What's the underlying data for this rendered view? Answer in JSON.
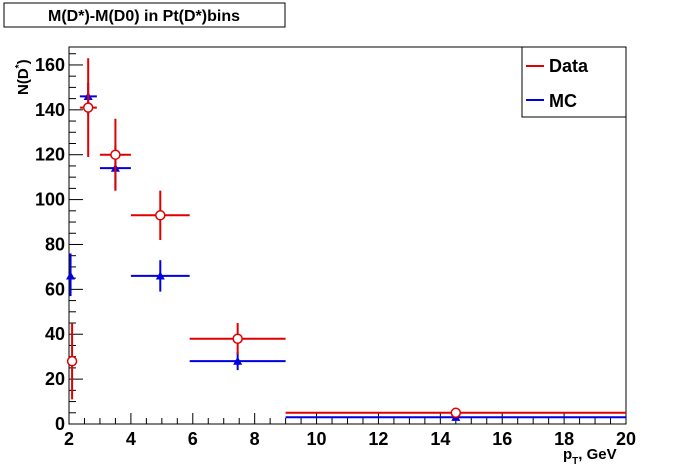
{
  "chart_data": {
    "type": "scatter",
    "title": "M(D*)-M(D0) in Pt(D*)bins",
    "xlabel_main": "p",
    "xlabel_sub": "T",
    "xlabel_rest": ", GeV",
    "ylabel_main": "N(D",
    "ylabel_sup": "*",
    "ylabel_close": ")",
    "xlim": [
      2,
      20
    ],
    "ylim": [
      0,
      168
    ],
    "x_ticks": [
      2,
      4,
      6,
      8,
      10,
      12,
      14,
      16,
      18,
      20
    ],
    "y_ticks": [
      0,
      20,
      40,
      60,
      80,
      100,
      120,
      140,
      160
    ],
    "grid": false,
    "legend_position": "top-right",
    "series": [
      {
        "name": "Data",
        "color": "#e00000",
        "marker": "open-circle",
        "points": [
          {
            "x": 2.1,
            "xlo": 2.0,
            "xhi": 2.2,
            "y": 28,
            "ylo": 11,
            "yhi": 45
          },
          {
            "x": 2.62,
            "xlo": 2.35,
            "xhi": 2.9,
            "y": 141,
            "ylo": 119,
            "yhi": 163
          },
          {
            "x": 3.5,
            "xlo": 3.0,
            "xhi": 4.0,
            "y": 120,
            "ylo": 104,
            "yhi": 136
          },
          {
            "x": 4.95,
            "xlo": 4.0,
            "xhi": 5.9,
            "y": 93,
            "ylo": 82,
            "yhi": 104
          },
          {
            "x": 7.45,
            "xlo": 5.9,
            "xhi": 9.0,
            "y": 38,
            "ylo": 31,
            "yhi": 45
          },
          {
            "x": 14.5,
            "xlo": 9.0,
            "xhi": 20.0,
            "y": 5,
            "ylo": 3,
            "yhi": 7
          }
        ]
      },
      {
        "name": "MC",
        "color": "#0000e0",
        "marker": "filled-triangle",
        "points": [
          {
            "x": 2.05,
            "xlo": 2.0,
            "xhi": 2.1,
            "y": 66,
            "ylo": 57,
            "yhi": 76
          },
          {
            "x": 2.62,
            "xlo": 2.35,
            "xhi": 2.9,
            "y": 146,
            "ylo": 138,
            "yhi": 152
          },
          {
            "x": 3.5,
            "xlo": 3.0,
            "xhi": 4.0,
            "y": 114,
            "ylo": 104,
            "yhi": 124
          },
          {
            "x": 4.95,
            "xlo": 4.0,
            "xhi": 5.9,
            "y": 66,
            "ylo": 59,
            "yhi": 73
          },
          {
            "x": 7.45,
            "xlo": 5.9,
            "xhi": 9.0,
            "y": 28,
            "ylo": 24,
            "yhi": 32
          },
          {
            "x": 14.5,
            "xlo": 9.0,
            "xhi": 20.0,
            "y": 3,
            "ylo": 2,
            "yhi": 4
          }
        ]
      }
    ]
  }
}
